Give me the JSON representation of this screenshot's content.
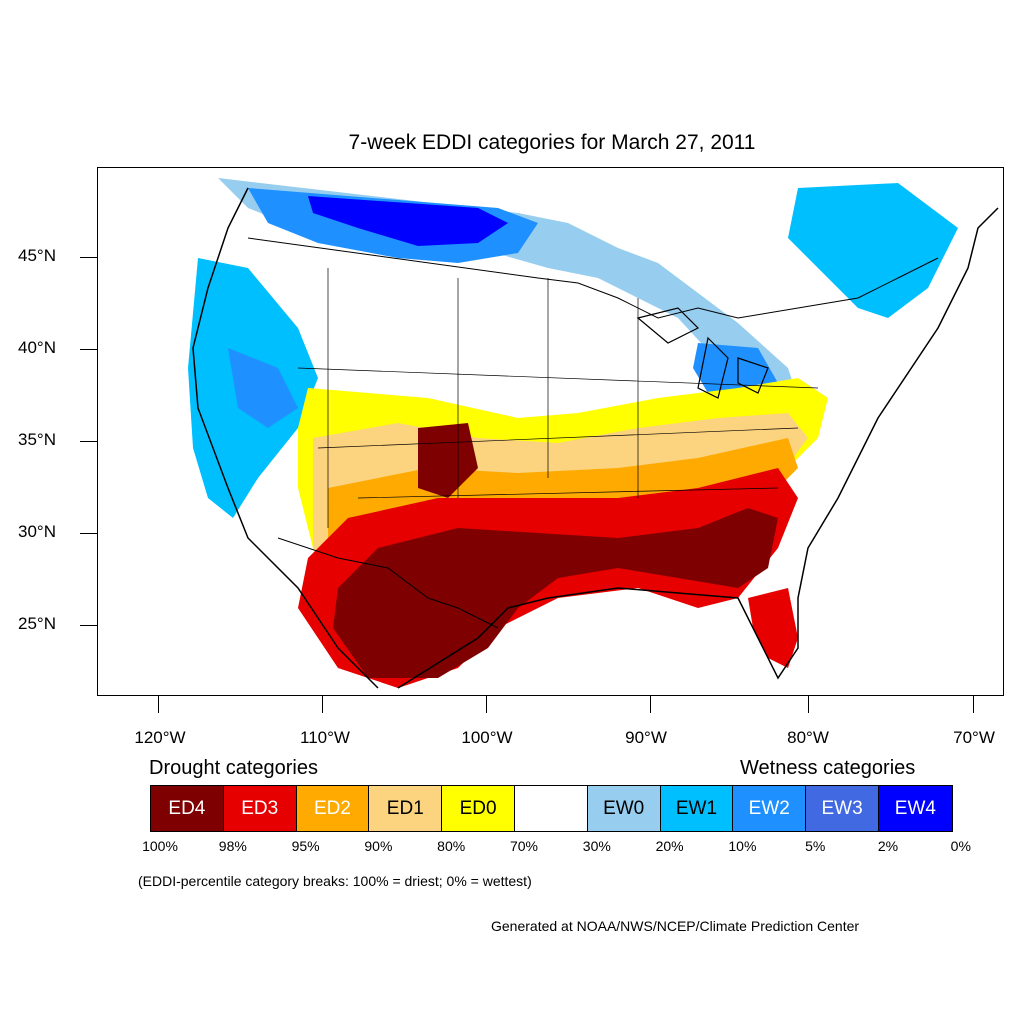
{
  "title": "7-week EDDI categories for March 27, 2011",
  "latitude_labels": [
    "45°N",
    "40°N",
    "35°N",
    "30°N",
    "25°N"
  ],
  "longitude_labels": [
    "120°W",
    "110°W",
    "100°W",
    "90°W",
    "80°W",
    "70°W"
  ],
  "legend": {
    "drought_heading": "Drought categories",
    "wetness_heading": "Wetness categories",
    "categories": [
      {
        "label": "ED4",
        "color": "#7f0000",
        "text_color": "#ffffff"
      },
      {
        "label": "ED3",
        "color": "#e60000",
        "text_color": "#ffffff"
      },
      {
        "label": "ED2",
        "color": "#ffaa00",
        "text_color": "#ffffff"
      },
      {
        "label": "ED1",
        "color": "#fcd37f",
        "text_color": "#000000"
      },
      {
        "label": "ED0",
        "color": "#ffff00",
        "text_color": "#000000"
      },
      {
        "label": "",
        "color": "#ffffff",
        "text_color": "#000000"
      },
      {
        "label": "EW0",
        "color": "#97cdef",
        "text_color": "#000000"
      },
      {
        "label": "EW1",
        "color": "#00bfff",
        "text_color": "#000000"
      },
      {
        "label": "EW2",
        "color": "#1e90ff",
        "text_color": "#ffffff"
      },
      {
        "label": "EW3",
        "color": "#4169e1",
        "text_color": "#ffffff"
      },
      {
        "label": "EW4",
        "color": "#0000ff",
        "text_color": "#ffffff"
      }
    ],
    "percentiles": [
      "100%",
      "98%",
      "95%",
      "90%",
      "80%",
      "70%",
      "30%",
      "20%",
      "10%",
      "5%",
      "2%",
      "0%"
    ]
  },
  "note": "(EDDI-percentile category breaks: 100% = driest; 0% = wettest)",
  "credit": "Generated at NOAA/NWS/NCEP/Climate Prediction Center"
}
